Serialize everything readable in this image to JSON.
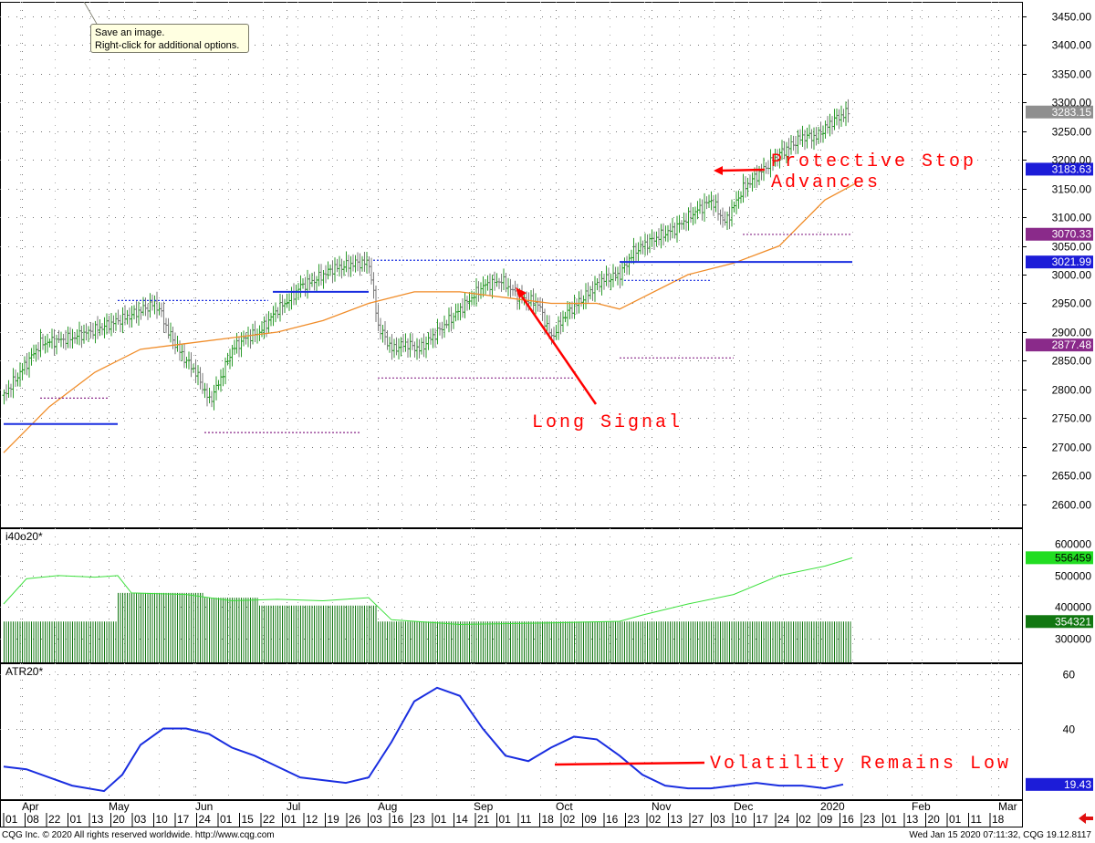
{
  "footer": {
    "copyright": "CQG Inc. © 2020 All rights reserved worldwide. http://www.cqg.com",
    "timestamp": "Wed Jan 15 2020 07:11:32, CQG 19.12.8117"
  },
  "tooltip": {
    "line1": "Save an image.",
    "line2": "Right-click for additional options."
  },
  "colors": {
    "up_bar": "#2a9a2a",
    "down_bar": "#7a7a7a",
    "moving_average": "#f08c28",
    "blue_line": "#1a2ee0",
    "purple_dash": "#8a2a8a",
    "volume_bar": "#117711",
    "atr_line": "#1a2ee0",
    "annotation": "#ff0000"
  },
  "chart_data": [
    {
      "type": "line",
      "panel": "price",
      "y_ticks": [
        2600,
        2650,
        2700,
        2750,
        2800,
        2850,
        2900,
        2950,
        3000,
        3050,
        3100,
        3150,
        3200,
        3250,
        3300,
        3350,
        3400,
        3450
      ],
      "y_tick_labels": [
        "2600.00",
        "2650.00",
        "2700.00",
        "2750.00",
        "2800.00",
        "2850.00",
        "2900.00",
        "2950.00",
        "3000.00",
        "3050.00",
        "3100.00",
        "3150.00",
        "3200.00",
        "3250.00",
        "3300.00",
        "3350.00",
        "3400.00",
        "3450.00"
      ],
      "ylim": [
        2560,
        3475
      ],
      "price_path": [
        [
          0,
          2790
        ],
        [
          8,
          2880
        ],
        [
          15,
          2890
        ],
        [
          22,
          2910
        ],
        [
          28,
          2930
        ],
        [
          33,
          2950
        ],
        [
          34,
          2940
        ],
        [
          36,
          2900
        ],
        [
          39,
          2860
        ],
        [
          42,
          2830
        ],
        [
          45,
          2780
        ],
        [
          47,
          2810
        ],
        [
          50,
          2870
        ],
        [
          53,
          2890
        ],
        [
          56,
          2900
        ],
        [
          60,
          2940
        ],
        [
          63,
          2960
        ],
        [
          65,
          2980
        ],
        [
          68,
          2990
        ],
        [
          72,
          3010
        ],
        [
          77,
          3020
        ],
        [
          80,
          3020
        ],
        [
          82,
          2910
        ],
        [
          85,
          2870
        ],
        [
          88,
          2880
        ],
        [
          91,
          2870
        ],
        [
          95,
          2900
        ],
        [
          100,
          2940
        ],
        [
          105,
          2980
        ],
        [
          109,
          2990
        ],
        [
          113,
          2960
        ],
        [
          117,
          2950
        ],
        [
          120,
          2890
        ],
        [
          123,
          2930
        ],
        [
          127,
          2960
        ],
        [
          131,
          2990
        ],
        [
          135,
          3000
        ],
        [
          138,
          3040
        ],
        [
          142,
          3060
        ],
        [
          147,
          3080
        ],
        [
          150,
          3100
        ],
        [
          155,
          3130
        ],
        [
          158,
          3090
        ],
        [
          162,
          3150
        ],
        [
          166,
          3180
        ],
        [
          170,
          3210
        ],
        [
          175,
          3240
        ],
        [
          178,
          3240
        ],
        [
          182,
          3270
        ],
        [
          185,
          3283
        ]
      ],
      "moving_average_path": [
        [
          0,
          2690
        ],
        [
          10,
          2770
        ],
        [
          20,
          2830
        ],
        [
          30,
          2870
        ],
        [
          40,
          2880
        ],
        [
          50,
          2890
        ],
        [
          60,
          2900
        ],
        [
          70,
          2920
        ],
        [
          80,
          2950
        ],
        [
          90,
          2970
        ],
        [
          100,
          2970
        ],
        [
          110,
          2960
        ],
        [
          120,
          2950
        ],
        [
          130,
          2950
        ],
        [
          135,
          2940
        ],
        [
          140,
          2960
        ],
        [
          150,
          3000
        ],
        [
          160,
          3020
        ],
        [
          170,
          3050
        ],
        [
          180,
          3130
        ],
        [
          187,
          3160
        ]
      ],
      "blue_levels": [
        {
          "x": [
            0,
            25
          ],
          "y": 2740
        },
        {
          "x": [
            59,
            80
          ],
          "y": 2970
        },
        {
          "x": [
            135,
            186
          ],
          "y": 3022
        }
      ],
      "dotted_levels": [
        {
          "x": [
            8,
            23
          ],
          "y": 2785,
          "color": "purple"
        },
        {
          "x": [
            25,
            58
          ],
          "y": 2955,
          "color": "blue"
        },
        {
          "x": [
            44,
            78
          ],
          "y": 2725,
          "color": "purple"
        },
        {
          "x": [
            81,
            132
          ],
          "y": 3025,
          "color": "blue"
        },
        {
          "x": [
            82,
            125
          ],
          "y": 2820,
          "color": "purple"
        },
        {
          "x": [
            135,
            160
          ],
          "y": 2855,
          "color": "purple"
        },
        {
          "x": [
            136,
            155
          ],
          "y": 2990,
          "color": "blue"
        },
        {
          "x": [
            162,
            186
          ],
          "y": 3070,
          "color": "purple"
        }
      ],
      "labels": [
        {
          "text": "3283.15",
          "value": 3283.15,
          "bg": "#8f8f8f"
        },
        {
          "text": "3183.63",
          "value": 3183.63,
          "bg": "#1c1cd8"
        },
        {
          "text": "3070.33",
          "value": 3070.33,
          "bg": "#8a2a8a"
        },
        {
          "text": "3021.99",
          "value": 3021.99,
          "bg": "#1c1cd8"
        },
        {
          "text": "2877.48",
          "value": 2877.48,
          "bg": "#8a2a8a"
        }
      ],
      "annotations": [
        {
          "text": "Protective Stop",
          "value": 3183
        },
        {
          "text": "Advances",
          "value": 3183
        },
        {
          "text": "Long Signal",
          "value": 2780
        }
      ]
    },
    {
      "type": "bar",
      "panel": "open_interest",
      "title": "i40o20*",
      "y_ticks": [
        300000,
        400000,
        500000,
        600000
      ],
      "y_tick_labels": [
        "300000",
        "400000",
        "500000",
        "600000"
      ],
      "ylim": [
        225000,
        650000
      ],
      "bar_steps": [
        {
          "x": [
            0,
            25
          ],
          "value": 354321
        },
        {
          "x": [
            25,
            44
          ],
          "value": 445000
        },
        {
          "x": [
            44,
            56
          ],
          "value": 430000
        },
        {
          "x": [
            56,
            82
          ],
          "value": 405000
        },
        {
          "x": [
            82,
            186
          ],
          "value": 354321
        }
      ],
      "line_path": [
        [
          0,
          410000
        ],
        [
          5,
          490000
        ],
        [
          12,
          500000
        ],
        [
          20,
          495000
        ],
        [
          25,
          500000
        ],
        [
          28,
          445000
        ],
        [
          40,
          440000
        ],
        [
          50,
          420000
        ],
        [
          60,
          425000
        ],
        [
          70,
          420000
        ],
        [
          80,
          430000
        ],
        [
          85,
          360000
        ],
        [
          100,
          345000
        ],
        [
          120,
          350000
        ],
        [
          135,
          355000
        ],
        [
          140,
          375000
        ],
        [
          150,
          410000
        ],
        [
          160,
          440000
        ],
        [
          170,
          500000
        ],
        [
          180,
          530000
        ],
        [
          186,
          556459
        ]
      ],
      "labels": [
        {
          "text": "556459",
          "value": 556459,
          "bg": "#22dd22"
        },
        {
          "text": "354321",
          "value": 354321,
          "bg": "#117711"
        }
      ],
      "x_tick_labels": [
        "500000"
      ]
    },
    {
      "type": "line",
      "panel": "atr",
      "title": "ATR20*",
      "y_ticks": [
        40,
        60
      ],
      "y_tick_labels": [
        "40",
        "60"
      ],
      "ylim": [
        14,
        64
      ],
      "series": [
        {
          "values": [
            [
              0,
              26
            ],
            [
              5,
              25
            ],
            [
              10,
              22
            ],
            [
              15,
              19
            ],
            [
              22,
              17
            ],
            [
              26,
              23
            ],
            [
              30,
              34
            ],
            [
              35,
              40
            ],
            [
              40,
              40
            ],
            [
              45,
              38
            ],
            [
              50,
              33
            ],
            [
              55,
              30
            ],
            [
              60,
              26
            ],
            [
              65,
              22
            ],
            [
              70,
              21
            ],
            [
              75,
              20
            ],
            [
              80,
              22
            ],
            [
              85,
              35
            ],
            [
              90,
              50
            ],
            [
              95,
              55
            ],
            [
              100,
              52
            ],
            [
              105,
              40
            ],
            [
              110,
              30
            ],
            [
              115,
              28
            ],
            [
              120,
              33
            ],
            [
              125,
              37
            ],
            [
              130,
              36
            ],
            [
              135,
              30
            ],
            [
              140,
              23
            ],
            [
              145,
              19
            ],
            [
              150,
              18
            ],
            [
              155,
              18
            ],
            [
              160,
              19
            ],
            [
              165,
              20
            ],
            [
              170,
              19
            ],
            [
              175,
              19
            ],
            [
              180,
              18
            ],
            [
              184,
              19.43
            ]
          ]
        }
      ],
      "labels": [
        {
          "text": "19.43",
          "value": 19.43,
          "bg": "#1c1cd8"
        }
      ],
      "annotations": [
        {
          "text": "Volatility Remains Low",
          "value": 22
        }
      ]
    }
  ],
  "x_axis": {
    "months": [
      {
        "label": "Apr",
        "pos": 4
      },
      {
        "label": "May",
        "pos": 23
      },
      {
        "label": "Jun",
        "pos": 42
      },
      {
        "label": "Jul",
        "pos": 62
      },
      {
        "label": "Aug",
        "pos": 82
      },
      {
        "label": "Sep",
        "pos": 103
      },
      {
        "label": "Oct",
        "pos": 121
      },
      {
        "label": "Nov",
        "pos": 142
      },
      {
        "label": "Dec",
        "pos": 160
      },
      {
        "label": "2020",
        "pos": 179
      },
      {
        "label": "Feb",
        "pos": 199
      },
      {
        "label": "Mar",
        "pos": 218
      },
      {
        "label": "Apr",
        "pos": 237
      },
      {
        "label": "May",
        "pos": 258
      }
    ],
    "days": [
      "01",
      "08",
      "22",
      "01",
      "13",
      "20",
      "03",
      "10",
      "17",
      "24",
      "01",
      "15",
      "22",
      "01",
      "12",
      "19",
      "26",
      "03",
      "16",
      "23",
      "01",
      "14",
      "21",
      "01",
      "11",
      "18",
      "02",
      "09",
      "16",
      "23",
      "02",
      "13",
      "27",
      "03",
      "10",
      "17",
      "24",
      "02",
      "09",
      "16",
      "23",
      "01",
      "13",
      "20",
      "01",
      "11",
      "18"
    ]
  }
}
